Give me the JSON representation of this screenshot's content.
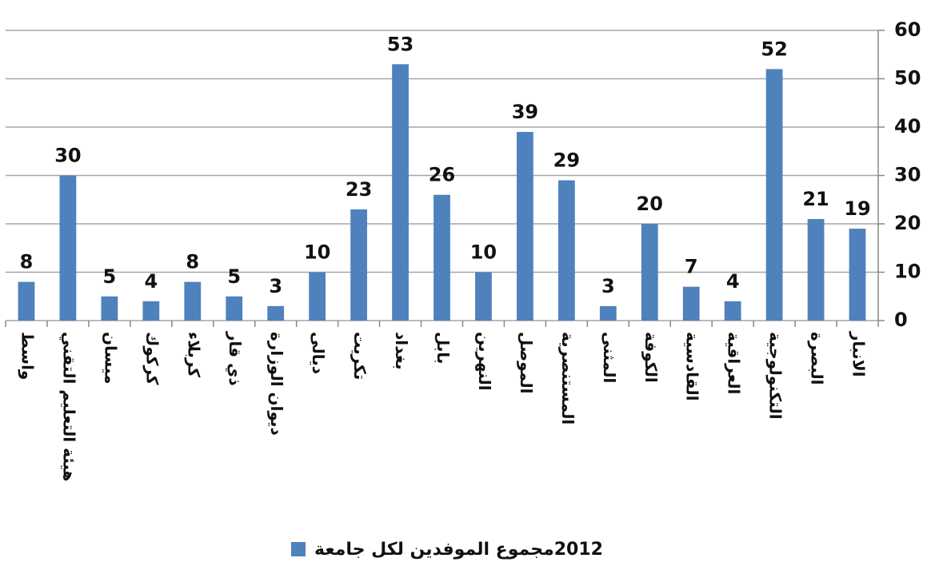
{
  "chart_data": {
    "type": "bar",
    "categories": [
      "واسط",
      "هيئة التعليم التقني",
      "ميسان",
      "كركوك",
      "كربلاء",
      "ذي قار",
      "ديوان الوزارة",
      "ديالى",
      "تكريت",
      "بغداد",
      "بابل",
      "النهرين",
      "الموصل",
      "المستنصرية",
      "المثنى",
      "الكوفة",
      "القادسية",
      "العراقية",
      "التكنولوجية",
      "البصرة",
      "الانبار"
    ],
    "series": [
      {
        "name": "2012مجموع الموفدين لكل جامعة",
        "color": "#4f81bd",
        "values": [
          8,
          30,
          5,
          4,
          8,
          5,
          3,
          10,
          23,
          53,
          26,
          10,
          39,
          29,
          3,
          20,
          7,
          4,
          52,
          21,
          19
        ]
      }
    ],
    "ylim": [
      0,
      60
    ],
    "yticks": [
      0,
      10,
      20,
      30,
      40,
      50,
      60
    ],
    "grid": true,
    "legend": "bottom"
  }
}
